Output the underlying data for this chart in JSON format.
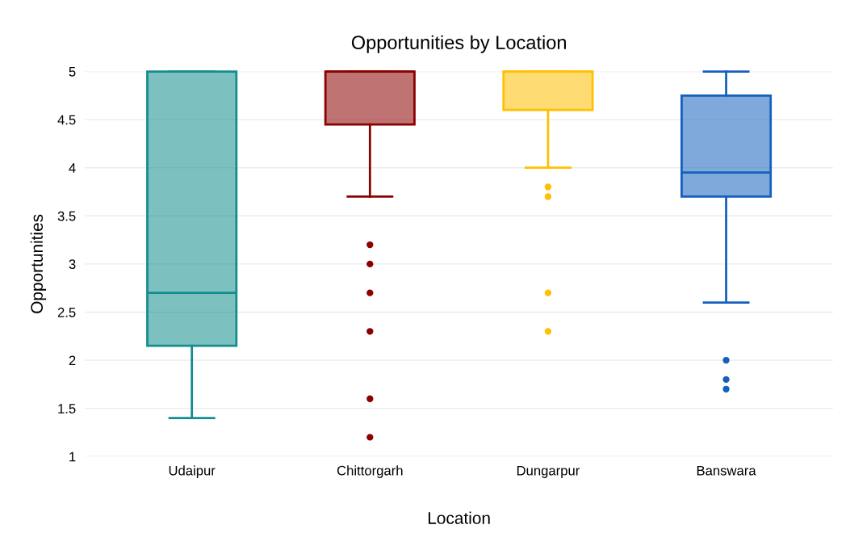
{
  "chart_data": {
    "type": "box",
    "title": "Opportunities by Location",
    "xlabel": "Location",
    "ylabel": "Opportunities",
    "categories": [
      "Udaipur",
      "Chittorgarh",
      "Dungarpur",
      "Banswara"
    ],
    "colors": [
      "#138d8d",
      "#8b0000",
      "#ffc000",
      "#1560bd"
    ],
    "boxes": [
      {
        "low": 1.4,
        "q1": 2.15,
        "median": 2.7,
        "q3": 5,
        "high": 5
      },
      {
        "low": 3.7,
        "q1": 4.45,
        "median": 5,
        "q3": 5,
        "high": 5,
        "outliers": [
          3.2,
          3.0,
          2.7,
          2.3,
          1.6,
          1.2
        ]
      },
      {
        "low": 4.0,
        "q1": 4.6,
        "median": 5,
        "q3": 5,
        "high": 5,
        "outliers": [
          3.8,
          3.7,
          2.7,
          2.3
        ]
      },
      {
        "low": 2.6,
        "q1": 3.7,
        "median": 3.95,
        "q3": 4.75,
        "high": 5,
        "outliers": [
          2.0,
          1.8,
          1.7
        ]
      }
    ],
    "ylim": [
      1,
      5
    ],
    "yticks": [
      1,
      1.5,
      2,
      2.5,
      3,
      3.5,
      4,
      4.5,
      5
    ],
    "grid": "y",
    "legend": false
  }
}
